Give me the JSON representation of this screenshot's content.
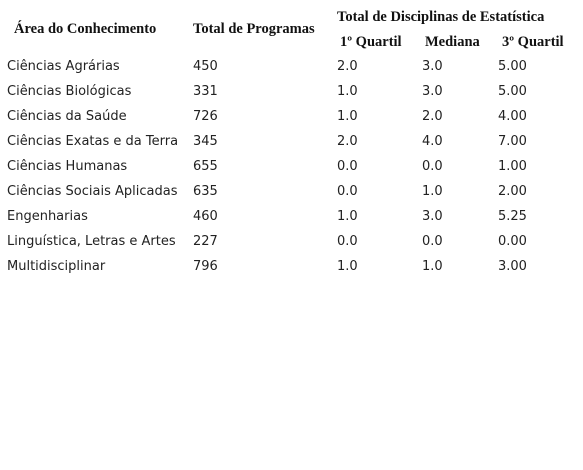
{
  "table": {
    "header": {
      "area": "Área do Conhecimento",
      "total": "Total de Programas",
      "group": "Total de Disciplinas de Estatística",
      "sub": [
        "1º Quartil",
        "Mediana",
        "3º Quartil"
      ]
    },
    "rows": [
      [
        "Ciências Agrárias",
        "450",
        "2.0",
        "3.0",
        "5.00"
      ],
      [
        "Ciências Biológicas",
        "331",
        "1.0",
        "3.0",
        "5.00"
      ],
      [
        "Ciências da Saúde",
        "726",
        "1.0",
        "2.0",
        "4.00"
      ],
      [
        "Ciências Exatas e da Terra",
        "345",
        "2.0",
        "4.0",
        "7.00"
      ],
      [
        "Ciências Humanas",
        "655",
        "0.0",
        "0.0",
        "1.00"
      ],
      [
        "Ciências Sociais Aplicadas",
        "635",
        "0.0",
        "1.0",
        "2.00"
      ],
      [
        "Engenharias",
        "460",
        "1.0",
        "3.0",
        "5.25"
      ],
      [
        "Linguística, Letras e Artes",
        "227",
        "0.0",
        "0.0",
        "0.00"
      ],
      [
        "Multidisciplinar",
        "796",
        "1.0",
        "1.0",
        "3.00"
      ]
    ]
  }
}
